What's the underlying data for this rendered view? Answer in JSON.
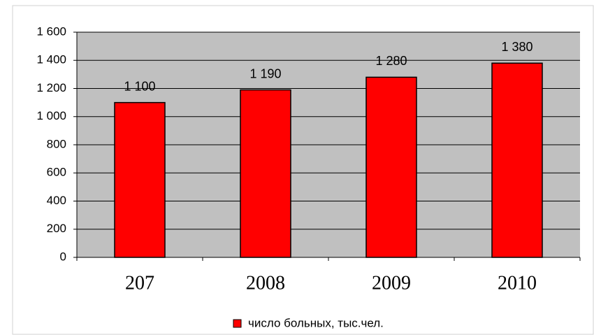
{
  "chart_data": {
    "type": "bar",
    "categories": [
      "207",
      "2008",
      "2009",
      "2010"
    ],
    "values": [
      1100,
      1190,
      1280,
      1380
    ],
    "value_labels": [
      "1 100",
      "1 190",
      "1 280",
      "1 380"
    ],
    "series_name": "число больных, тыс.чел.",
    "color": "#ff0000",
    "ylim": [
      0,
      1600
    ],
    "yticks": [
      0,
      200,
      400,
      600,
      800,
      {
        "value": 1000,
        "label": "1 000"
      },
      {
        "value": 1200,
        "label": "1 200"
      },
      {
        "value": 1400,
        "label": "1 400"
      },
      {
        "value": 1600,
        "label": "1 600"
      }
    ],
    "grid": true
  }
}
